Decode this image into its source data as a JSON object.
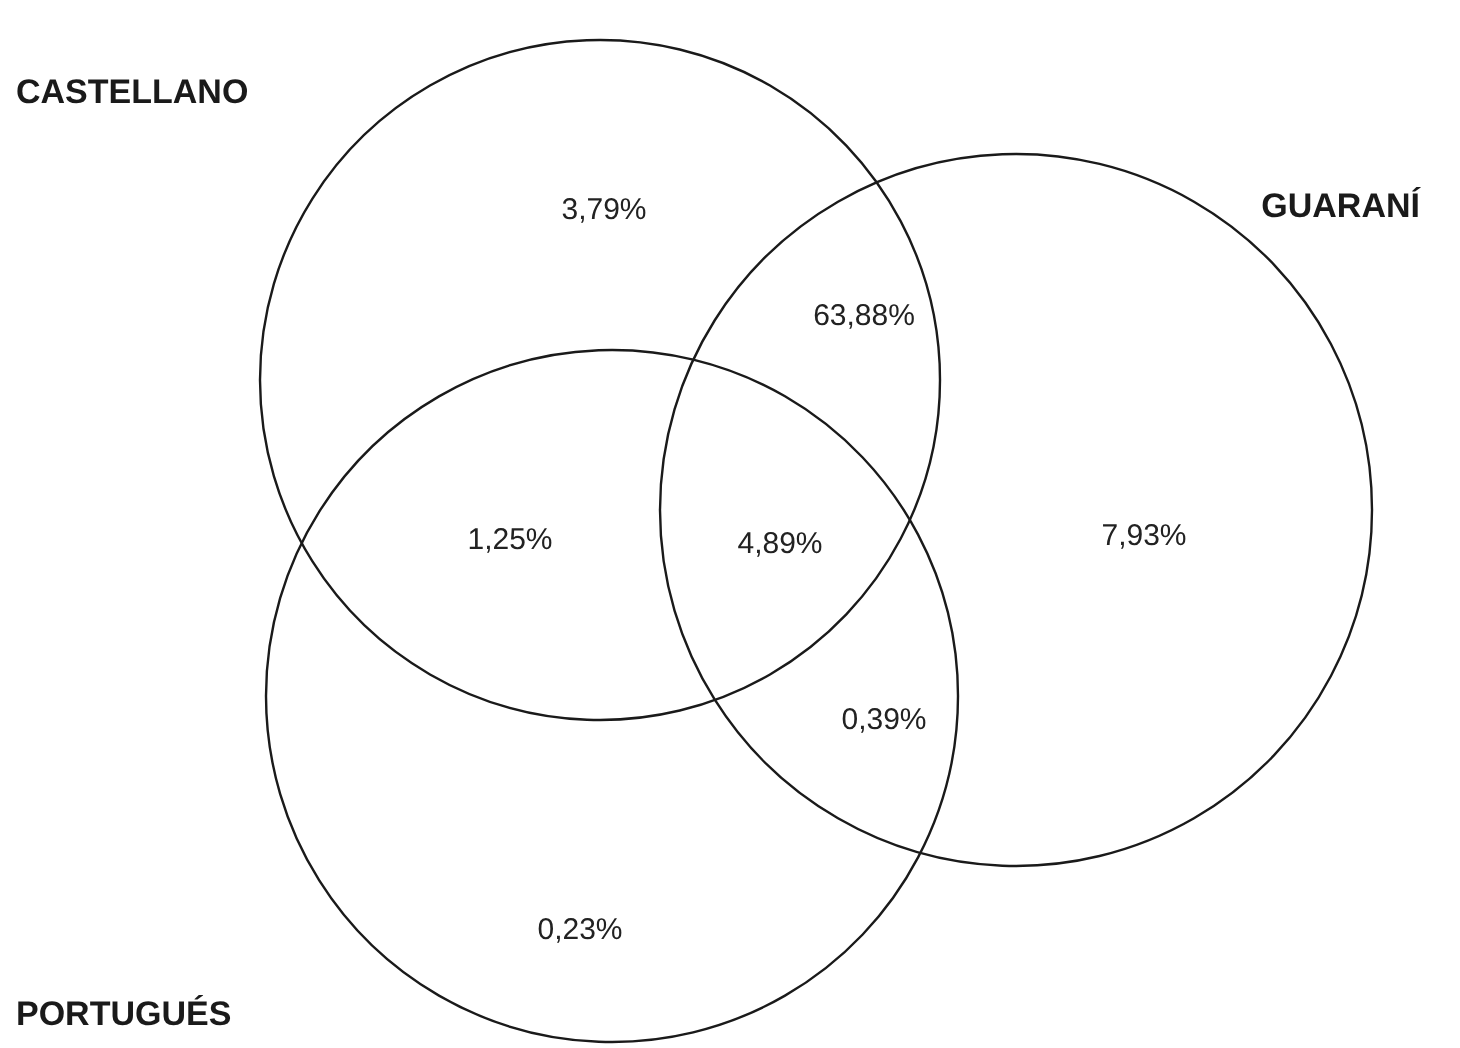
{
  "chart_data": {
    "type": "other",
    "categories": [
      null,
      null,
      null,
      null,
      null,
      null,
      null
    ],
    "values": [
      3.79,
      63.88,
      1.25,
      4.89,
      7.93,
      0.39,
      0.23
    ],
    "value_labels": [
      "3,79%",
      "63,88%",
      "1,25%",
      "4,89%",
      "7,93%",
      "0,39%",
      "0,23%"
    ],
    "annotations": [
      "CASTELLANO",
      "GUARANÍ",
      "PORTUGUÉS"
    ]
  }
}
